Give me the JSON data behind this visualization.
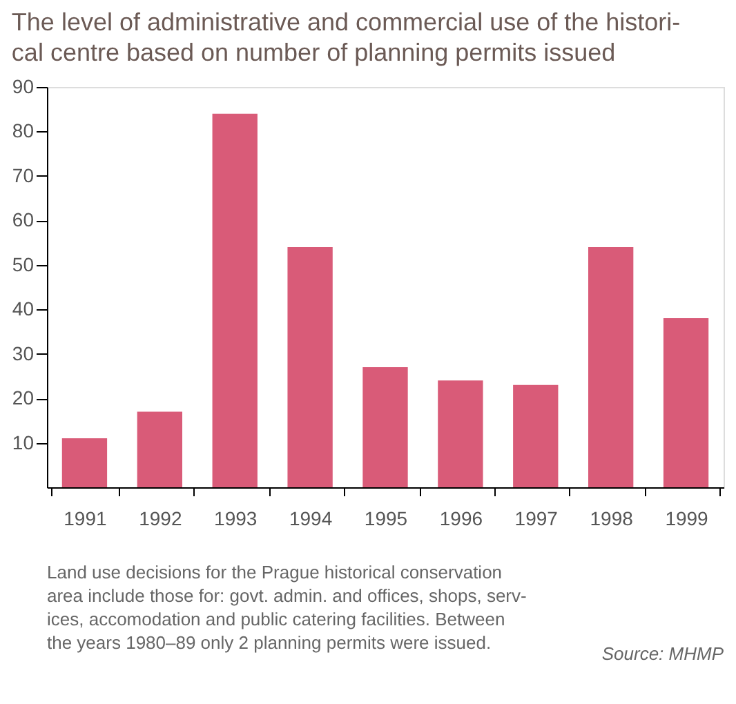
{
  "chart_data": {
    "type": "bar",
    "title": "The level of administrative and commercial use of the histori-\ncal centre based on number of planning permits issued",
    "categories": [
      "1991",
      "1992",
      "1993",
      "1994",
      "1995",
      "1996",
      "1997",
      "1998",
      "1999"
    ],
    "values": [
      11,
      17,
      84,
      54,
      27,
      24,
      23,
      54,
      38
    ],
    "color": "#d95b78",
    "ylim": [
      0,
      90
    ],
    "yticks": [
      10,
      20,
      30,
      40,
      50,
      60,
      70,
      80,
      90
    ],
    "grid": false,
    "annotations": [
      "Land use decisions for the Prague historical conservation\narea include those for: govt. admin. and offices, shops, serv-\nices, accomodation and public catering facilities. Between\nthe years 1980–89 only 2 planning permits were issued.",
      "Source: MHMP"
    ]
  }
}
